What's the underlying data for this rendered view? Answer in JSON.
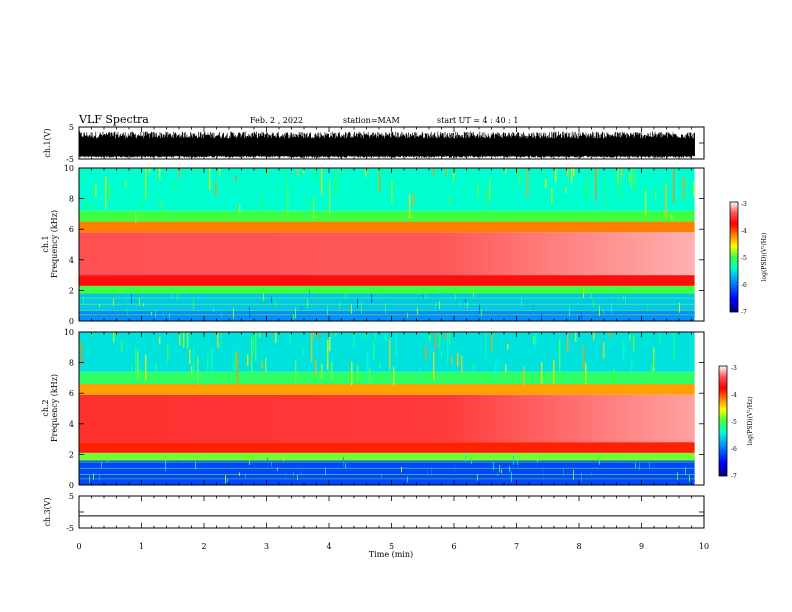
{
  "header": {
    "title": "VLF Spectra",
    "date": "Feb. 2 , 2022",
    "station": "station=MAM",
    "start_time": "start UT =  4 : 40 : 1"
  },
  "colors": {
    "background": "#ffffff",
    "axis": "#000000",
    "colormap": [
      "#00007f",
      "#0000ff",
      "#0090ff",
      "#00ffd0",
      "#40ff40",
      "#ffff00",
      "#ff8000",
      "#ff0000",
      "#ff3030",
      "#ffb0b0",
      "#ffffff"
    ]
  },
  "chart_data": [
    {
      "type": "line",
      "panel": "ch1-waveform",
      "ylabel": "ch.1(V)",
      "yticks": [
        "5",
        "-5"
      ],
      "ylim": [
        -5,
        5
      ],
      "xlim": [
        0,
        10
      ],
      "description_signal": "dense noise burst approx -5 to 4 V",
      "envelope": {
        "low": -4.6,
        "high": 3.6
      }
    },
    {
      "type": "heatmap",
      "panel": "ch1-spectrogram",
      "ylabel": "ch.1\nFrequency (kHz)",
      "ylabel_lines": [
        "ch.1",
        "Frequency (kHz)"
      ],
      "yticks": [
        "0",
        "2",
        "4",
        "6",
        "8",
        "10"
      ],
      "ylim": [
        0,
        10
      ],
      "xlim": [
        0,
        9.85
      ],
      "colorbar": {
        "label": "log(PSD)(V²/Hz)",
        "range": [
          -7,
          -3
        ],
        "ticks": [
          "-3",
          "-4",
          "-5",
          "-6",
          "-7"
        ]
      },
      "bands": [
        {
          "f_from": 0.0,
          "f_to": 0.7,
          "level": -6.2
        },
        {
          "f_from": 0.7,
          "f_to": 1.8,
          "level": -6.0
        },
        {
          "f_from": 1.8,
          "f_to": 2.3,
          "level": -5.4
        },
        {
          "f_from": 2.3,
          "f_to": 3.0,
          "level": -4.1
        },
        {
          "f_from": 3.0,
          "f_to": 5.8,
          "level": -3.7
        },
        {
          "f_from": 5.8,
          "f_to": 6.5,
          "level": -4.6
        },
        {
          "f_from": 6.5,
          "f_to": 7.2,
          "level": -5.4
        },
        {
          "f_from": 7.2,
          "f_to": 10.0,
          "level": -5.8
        }
      ]
    },
    {
      "type": "heatmap",
      "panel": "ch2-spectrogram",
      "ylabel_lines": [
        "ch.2",
        "Frequency (kHz)"
      ],
      "yticks": [
        "0",
        "2",
        "4",
        "6",
        "8",
        "10"
      ],
      "ylim": [
        0,
        10
      ],
      "xlim": [
        0,
        9.85
      ],
      "colorbar": {
        "label": "log(PSD)(V²/Hz)",
        "range": [
          -7,
          -3
        ],
        "ticks": [
          "-3",
          "-4",
          "-5",
          "-6",
          "-7"
        ]
      },
      "bands": [
        {
          "f_from": 0.0,
          "f_to": 1.6,
          "level": -6.4
        },
        {
          "f_from": 1.6,
          "f_to": 2.1,
          "level": -5.3
        },
        {
          "f_from": 2.1,
          "f_to": 2.8,
          "level": -4.3
        },
        {
          "f_from": 2.8,
          "f_to": 5.9,
          "level": -3.8
        },
        {
          "f_from": 5.9,
          "f_to": 6.6,
          "level": -4.7
        },
        {
          "f_from": 6.6,
          "f_to": 7.4,
          "level": -5.5
        },
        {
          "f_from": 7.4,
          "f_to": 10.0,
          "level": -5.9
        }
      ]
    },
    {
      "type": "line",
      "panel": "ch3-waveform",
      "ylabel": "ch.3(V)",
      "yticks": [
        "5",
        "-5"
      ],
      "ylim": [
        -5,
        5
      ],
      "xlim": [
        0,
        10
      ],
      "constant_value": -1.2
    }
  ],
  "x_axis": {
    "label": "Time  (min)",
    "ticks": [
      "0",
      "1",
      "2",
      "3",
      "4",
      "5",
      "6",
      "7",
      "8",
      "9",
      "10"
    ],
    "range": [
      0,
      10
    ]
  }
}
